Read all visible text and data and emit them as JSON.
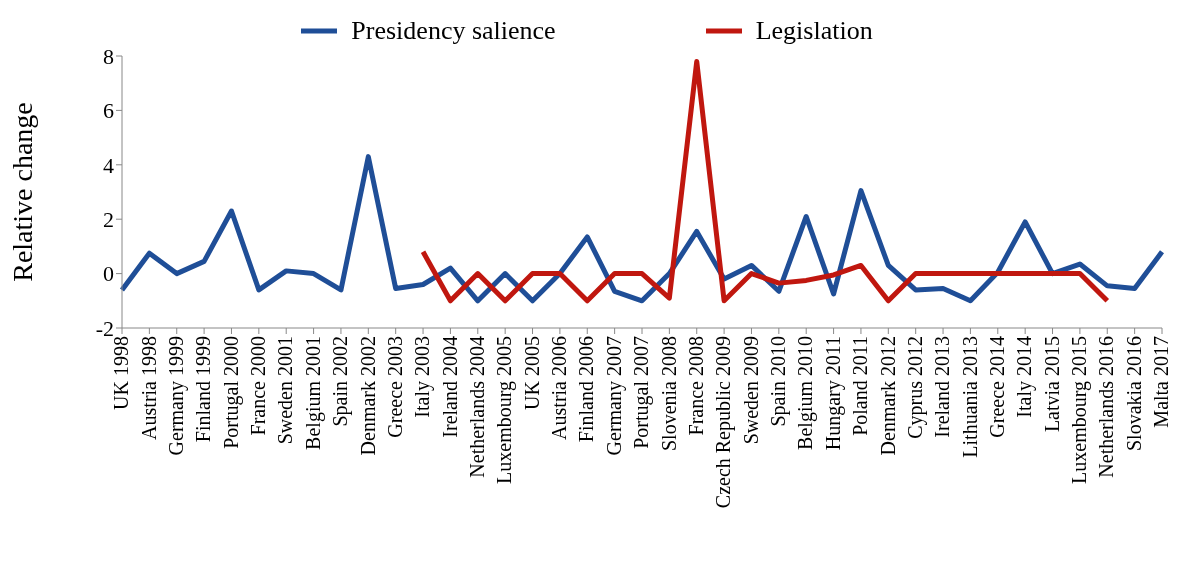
{
  "chart_data": {
    "type": "line",
    "ylabel": "Relative change",
    "categories": [
      "UK 1998",
      "Austria 1998",
      "Germany 1999",
      "Finland 1999",
      "Portugal 2000",
      "France 2000",
      "Sweden 2001",
      "Belgium 2001",
      "Spain 2002",
      "Denmark 2002",
      "Greece 2003",
      "Italy 2003",
      "Ireland 2004",
      "Netherlands 2004",
      "Luxembourg 2005",
      "UK 2005",
      "Austria 2006",
      "Finland 2006",
      "Germany 2007",
      "Portugal 2007",
      "Slovenia 2008",
      "France 2008",
      "Czech Republic 2009",
      "Sweden 2009",
      "Spain 2010",
      "Belgium 2010",
      "Hungary 2011",
      "Poland 2011",
      "Denmark 2012",
      "Cyprus 2012",
      "Ireland 2013",
      "Lithuania 2013",
      "Greece 2014",
      "Italy 2014",
      "Latvia 2015",
      "Luxembourg 2015",
      "Netherlands 2016",
      "Slovakia 2016",
      "Malta 2017"
    ],
    "series": [
      {
        "name": "Presidency salience",
        "color": "#1f4e97",
        "values": [
          -0.6,
          0.75,
          0,
          0.45,
          2.3,
          -0.6,
          0.1,
          0,
          -0.6,
          4.3,
          -0.55,
          -0.4,
          0.2,
          -1,
          0,
          -1,
          0,
          1.35,
          -0.65,
          -1,
          0,
          1.55,
          -0.2,
          0.3,
          -0.65,
          2.1,
          -0.75,
          3.05,
          0.3,
          -0.6,
          -0.55,
          -1,
          0.05,
          1.9,
          0,
          0.35,
          -0.45,
          -0.55,
          0.8
        ]
      },
      {
        "name": "Legislation",
        "color": "#c0170f",
        "values": [
          null,
          null,
          null,
          null,
          null,
          null,
          null,
          null,
          null,
          null,
          null,
          0.8,
          -1,
          0,
          -1,
          0,
          0,
          -1,
          0,
          0,
          -0.9,
          7.8,
          -1,
          0,
          -0.35,
          -0.25,
          -0.05,
          0.3,
          -1,
          0,
          0,
          0,
          0,
          0,
          0,
          0,
          -1,
          null,
          null
        ]
      }
    ],
    "ylim": [
      -2,
      8
    ],
    "yticks": [
      -2,
      0,
      2,
      4,
      6,
      8
    ],
    "legend": "top",
    "marker": "none",
    "line_style": "solid"
  }
}
